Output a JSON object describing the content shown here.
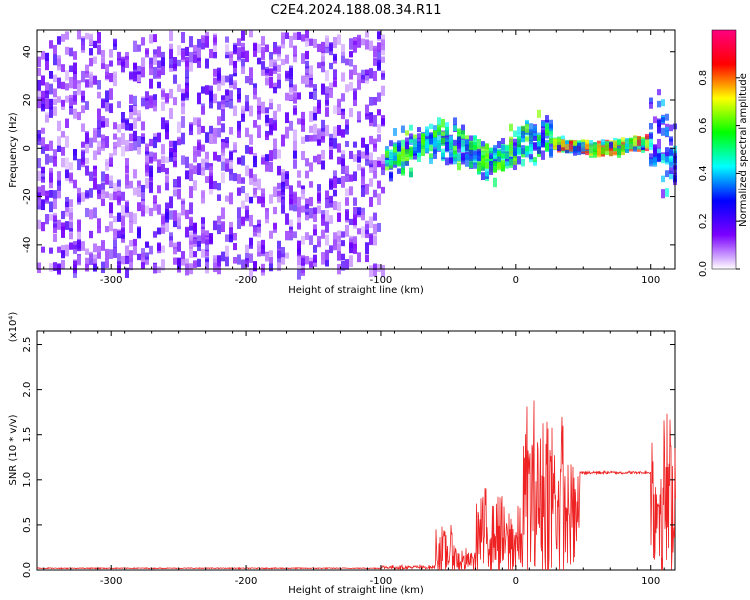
{
  "title": "C2E4.2024.188.08.34.R11",
  "chart_data": [
    {
      "type": "heatmap",
      "xlabel": "Height of straight line (km)",
      "ylabel": "Frequency (Hz)",
      "xlim": [
        -355,
        118
      ],
      "ylim": [
        -50,
        49
      ],
      "xticks": [
        -300,
        -200,
        -100,
        0,
        100
      ],
      "yticks": [
        -40,
        -20,
        0,
        20,
        40
      ],
      "colorbar": {
        "label": "Normalized spectral amplitude",
        "ticks": [
          "0.0",
          "0.2",
          "0.4",
          "0.6",
          "0.8"
        ],
        "range": [
          0,
          1
        ],
        "colormap": [
          "#ffffff",
          "#7b00ff",
          "#0000ff",
          "#00ffff",
          "#00ff00",
          "#ffff00",
          "#ff0000",
          "#ff0080"
        ]
      },
      "regions": [
        {
          "x": [
            -355,
            -98
          ],
          "description": "broadband noise",
          "freq_range": [
            -50,
            49
          ],
          "amplitude": 0.15
        },
        {
          "x": [
            -98,
            25
          ],
          "description": "turbulent narrow band",
          "freq_center": 0,
          "freq_spread": 8,
          "amplitude": 0.5
        },
        {
          "x": [
            25,
            98
          ],
          "description": "steady tone",
          "freq_center": 1.5,
          "freq_spread": 2,
          "amplitude": 0.7
        },
        {
          "x": [
            98,
            118
          ],
          "description": "disturbed",
          "freq_center": -5,
          "freq_spread": 20,
          "amplitude": 0.35
        }
      ]
    },
    {
      "type": "line",
      "xlabel": "Height of straight line (km)",
      "ylabel": "SNR (10 * v/v)",
      "y_multiplier": "(x10⁴)",
      "xlim": [
        -355,
        118
      ],
      "ylim": [
        0,
        2.65
      ],
      "xticks": [
        -300,
        -200,
        -100,
        0,
        100
      ],
      "yticks": [
        "0.0",
        "0.5",
        "1.0",
        "1.5",
        "2.0",
        "2.5"
      ],
      "color": "#ee2222",
      "segments": [
        {
          "x": [
            -355,
            -100
          ],
          "level": 0.02,
          "noise": 0.01
        },
        {
          "x": [
            -100,
            -60
          ],
          "level": 0.03,
          "noise": 0.04
        },
        {
          "x": [
            -60,
            -45
          ],
          "level": 0.2,
          "noise": 0.5
        },
        {
          "x": [
            -45,
            -30
          ],
          "level": 0.1,
          "noise": 0.25
        },
        {
          "x": [
            -30,
            -10
          ],
          "level": 0.4,
          "noise": 0.9
        },
        {
          "x": [
            -10,
            5
          ],
          "level": 0.3,
          "noise": 0.7
        },
        {
          "x": [
            5,
            35
          ],
          "level": 0.8,
          "noise": 1.9
        },
        {
          "x": [
            35,
            47
          ],
          "level": 0.6,
          "noise": 1.0
        },
        {
          "x": [
            47,
            100
          ],
          "level": 1.08,
          "noise": 0.03
        },
        {
          "x": [
            100,
            118
          ],
          "level": 0.8,
          "noise": 1.7
        }
      ]
    }
  ]
}
